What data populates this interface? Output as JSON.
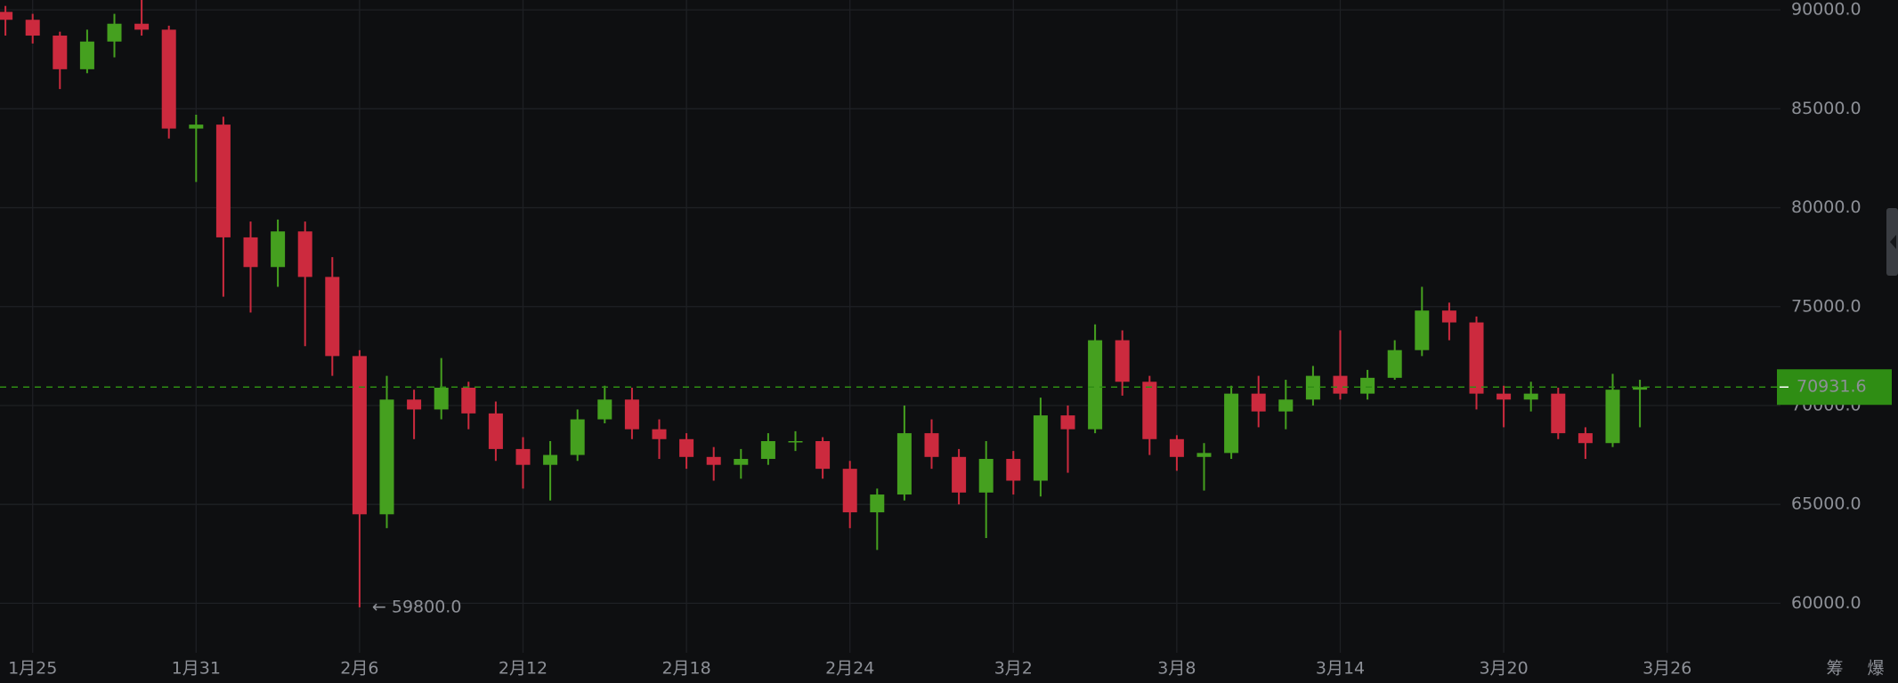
{
  "chart_data": {
    "type": "candlestick",
    "categories": [
      null,
      "1月25",
      null,
      null,
      null,
      null,
      null,
      "1月31",
      null,
      null,
      null,
      null,
      null,
      "2月6",
      null,
      null,
      null,
      null,
      null,
      "2月12",
      null,
      null,
      null,
      null,
      null,
      "2月18",
      null,
      null,
      null,
      null,
      null,
      "2月24",
      null,
      null,
      null,
      null,
      null,
      "3月2",
      null,
      null,
      null,
      null,
      null,
      "3月8",
      null,
      null,
      null,
      null,
      null,
      "3月14",
      null,
      null,
      null,
      null,
      null,
      "3月20",
      null,
      null,
      null,
      null,
      null,
      "3月26"
    ],
    "open": [
      89900,
      89500,
      88700,
      87000,
      88400,
      89300,
      89000,
      84000,
      84200,
      78500,
      77000,
      78800,
      76500,
      72500,
      64500,
      70300,
      69800,
      70900,
      69600,
      67800,
      67000,
      67500,
      69300,
      70300,
      68800,
      68300,
      67400,
      67000,
      67300,
      68200,
      68200,
      66800,
      64600,
      65500,
      68600,
      67400,
      65600,
      67300,
      66200,
      69500,
      68800,
      73300,
      71200,
      68300,
      67400,
      67600,
      70600,
      69700,
      70300,
      71500,
      70600,
      71400,
      72800,
      74800,
      74200,
      70600,
      70300,
      70600,
      68600,
      68100,
      70800,
      null
    ],
    "high": [
      90200,
      89800,
      88900,
      89000,
      89800,
      90500,
      89200,
      84700,
      84600,
      79300,
      79400,
      79300,
      77500,
      72800,
      71500,
      70800,
      72400,
      71200,
      70200,
      68400,
      68200,
      69800,
      71000,
      70900,
      69300,
      68600,
      67900,
      67800,
      68600,
      68700,
      68400,
      67200,
      65800,
      70000,
      69300,
      67800,
      68200,
      67700,
      70400,
      70000,
      74100,
      73800,
      71500,
      68500,
      68100,
      71000,
      71500,
      71300,
      72000,
      73800,
      71800,
      73300,
      76000,
      75200,
      74500,
      71000,
      71200,
      70900,
      68900,
      71600,
      71300,
      null
    ],
    "low": [
      88700,
      88300,
      86000,
      86800,
      87600,
      88700,
      83500,
      81300,
      75500,
      74700,
      76000,
      73000,
      71500,
      59800,
      63800,
      68300,
      69300,
      68800,
      67200,
      65800,
      65200,
      67200,
      69100,
      68300,
      67300,
      66800,
      66200,
      66300,
      67000,
      67700,
      66300,
      63800,
      62700,
      65200,
      66800,
      65000,
      63300,
      65500,
      65400,
      66600,
      68600,
      70500,
      67500,
      66700,
      65700,
      67300,
      68900,
      68800,
      70000,
      70300,
      70300,
      71300,
      72500,
      73300,
      69800,
      68900,
      69700,
      68300,
      67300,
      67900,
      68900,
      null
    ],
    "close": [
      89500,
      88700,
      87000,
      88400,
      89300,
      89000,
      84000,
      84200,
      78500,
      77000,
      78800,
      76500,
      72500,
      64500,
      70300,
      69800,
      70900,
      69600,
      67800,
      67000,
      67500,
      69300,
      70300,
      68800,
      68300,
      67400,
      67000,
      67300,
      68200,
      68200,
      66800,
      64600,
      65500,
      68600,
      67400,
      65600,
      67300,
      66200,
      69500,
      68800,
      73300,
      71200,
      68300,
      67400,
      67600,
      70600,
      69700,
      70300,
      71500,
      70600,
      71400,
      72800,
      74800,
      74200,
      70600,
      70300,
      70600,
      68600,
      68100,
      70800,
      70931.6,
      null
    ],
    "up_color": "#45a01f",
    "down_color": "#cc2a3e",
    "ylim": [
      57500,
      90500
    ],
    "yticks": [
      {
        "value": 60000,
        "label": "60000.0"
      },
      {
        "value": 65000,
        "label": "65000.0"
      },
      {
        "value": 70000,
        "label": "70000.0"
      },
      {
        "value": 75000,
        "label": "75000.0"
      },
      {
        "value": 80000,
        "label": "80000.0"
      },
      {
        "value": 85000,
        "label": "85000.0"
      },
      {
        "value": 90000,
        "label": "90000.0"
      }
    ],
    "grid": true,
    "last_price": 70931.6,
    "last_price_color": "#2f8d14",
    "annotation": "← 59800.0",
    "toolbar": [
      "筹",
      "爆"
    ]
  }
}
